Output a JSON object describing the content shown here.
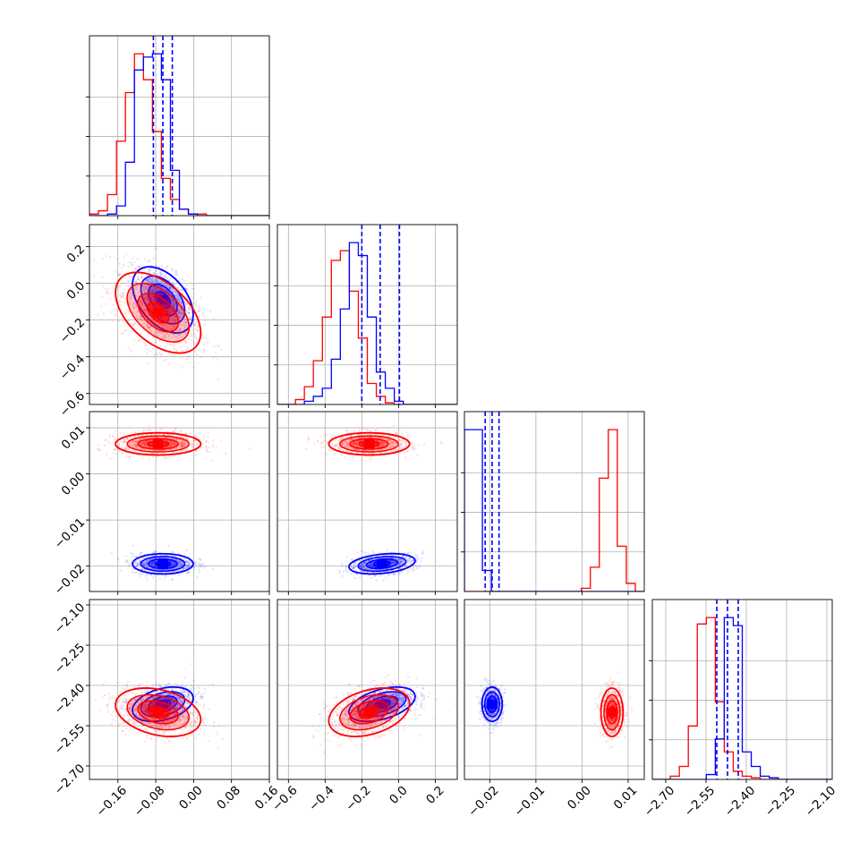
{
  "chart_data": {
    "type": "scatter",
    "title": "",
    "plot_kind": "corner",
    "colors": {
      "series_a": "#0000ff",
      "series_b": "#ff0000",
      "grid": "#b0b0b0",
      "frame": "#000000"
    },
    "series": [
      {
        "color": "#0000ff",
        "means": [
          -0.065,
          -0.09,
          -0.0195,
          -2.47
        ],
        "sd": [
          0.032,
          0.09,
          0.0011,
          0.032
        ],
        "quantiles": [
          [
            -0.085,
            -0.065,
            -0.045
          ],
          [
            -0.2,
            -0.1,
            0.005
          ],
          [
            -0.021,
            -0.0195,
            -0.018
          ],
          [
            -2.51,
            -2.47,
            -2.43
          ]
        ],
        "corr": {
          "1-0": -0.45,
          "2-0": 0.0,
          "2-1": 0.3,
          "3-0": 0.35,
          "3-1": 0.45,
          "3-2": 0.0
        }
      },
      {
        "color": "#ff0000",
        "means": [
          -0.075,
          -0.16,
          0.0065,
          -2.5
        ],
        "sd": [
          0.045,
          0.11,
          0.0012,
          0.045
        ],
        "corr": {
          "1-0": -0.5,
          "2-0": 0.0,
          "2-1": 0.0,
          "3-0": -0.3,
          "3-1": 0.35,
          "3-2": 0.0
        }
      }
    ],
    "histograms": [
      {
        "series_a": [
          0,
          0,
          1,
          6,
          33,
          90,
          98,
          100,
          84,
          28,
          4,
          1,
          0,
          0,
          0,
          0,
          0,
          0,
          0,
          0
        ],
        "series_b": [
          1,
          3,
          13,
          46,
          76,
          100,
          84,
          52,
          23,
          10,
          4,
          1,
          1,
          0,
          0,
          0,
          0,
          0,
          0,
          0
        ]
      },
      {
        "series_a": [
          0,
          0,
          0,
          2,
          5,
          10,
          28,
          59,
          100,
          92,
          54,
          20,
          10,
          2,
          0,
          0,
          0,
          0,
          0,
          0
        ],
        "series_b": [
          0,
          0,
          3,
          11,
          27,
          54,
          89,
          95,
          70,
          41,
          13,
          5,
          1,
          0,
          0,
          0,
          0,
          0,
          0,
          0
        ]
      },
      {
        "series_a": [
          100,
          100,
          13,
          0,
          0,
          0,
          0,
          0,
          0,
          0,
          0,
          0,
          0,
          0,
          0,
          0,
          0,
          0,
          0,
          0
        ],
        "series_b": [
          0,
          0,
          0,
          0,
          0,
          0,
          0,
          0,
          0,
          0,
          0,
          0,
          0,
          2,
          15,
          70,
          100,
          28,
          5,
          0
        ],
        "series_a_start": 0,
        "series_b_start": 0
      },
      {
        "series_a": [
          0,
          0,
          0,
          0,
          0,
          0,
          3,
          25,
          100,
          95,
          17,
          8,
          2,
          1,
          0,
          0,
          0,
          0,
          0,
          0
        ],
        "series_b": [
          0,
          0,
          2,
          8,
          33,
          96,
          100,
          48,
          17,
          5,
          2,
          1,
          0,
          0,
          0,
          0,
          0,
          0,
          0,
          0
        ]
      }
    ],
    "axes": [
      {
        "range": [
          -0.22,
          0.16
        ],
        "ticks": [
          -0.16,
          -0.08,
          0.0,
          0.08,
          0.16
        ],
        "tick_labels": [
          "−0.16",
          "−0.08",
          "0.00",
          "0.08",
          "0.16"
        ]
      },
      {
        "range": [
          -0.66,
          0.32
        ],
        "ticks": [
          -0.6,
          -0.4,
          -0.2,
          0.0,
          0.2
        ],
        "tick_labels": [
          "−0.6",
          "−0.4",
          "−0.2",
          "0.0",
          "0.2"
        ]
      },
      {
        "range": [
          -0.0255,
          0.0135
        ],
        "ticks": [
          -0.02,
          -0.01,
          0.0,
          0.01
        ],
        "tick_labels": [
          "−0.02",
          "−0.01",
          "0.00",
          "0.01"
        ]
      },
      {
        "range": [
          -2.75,
          -2.08
        ],
        "ticks": [
          -2.7,
          -2.55,
          -2.4,
          -2.25,
          -2.1
        ],
        "tick_labels": [
          "−2.70",
          "−2.55",
          "−2.40",
          "−2.25",
          "−2.10"
        ]
      }
    ],
    "y_axes": [
      null,
      {
        "ticks": [
          -0.6,
          -0.4,
          -0.2,
          0.0,
          0.2
        ],
        "tick_labels": [
          "−0.6",
          "−0.4",
          "−0.2",
          "0.0",
          "0.2"
        ]
      },
      {
        "ticks": [
          -0.02,
          -0.01,
          0.0,
          0.01
        ],
        "tick_labels": [
          "−0.02",
          "−0.01",
          "0.00",
          "0.01"
        ]
      },
      {
        "ticks": [
          -2.7,
          -2.55,
          -2.4,
          -2.25,
          -2.1
        ],
        "tick_labels": [
          "−2.70",
          "−2.55",
          "−2.40",
          "−2.25",
          "−2.10"
        ]
      }
    ],
    "grid": true,
    "legend": "none"
  }
}
